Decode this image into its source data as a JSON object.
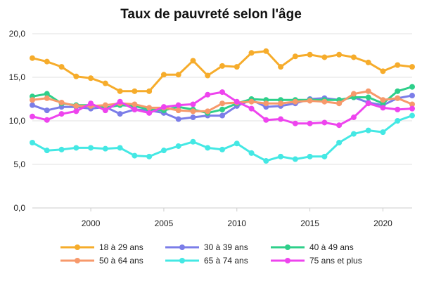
{
  "chart_data": {
    "type": "line",
    "title": "Taux de pauvreté selon l'âge",
    "xlabel": "",
    "ylabel": "",
    "xlim": [
      1996,
      2022
    ],
    "ylim": [
      0,
      20
    ],
    "x_ticks": [
      2000,
      2005,
      2010,
      2015,
      2020
    ],
    "y_ticks": [
      "0,0",
      "5,0",
      "10,0",
      "15,0",
      "20,0"
    ],
    "y_tick_values": [
      0,
      5,
      10,
      15,
      20
    ],
    "grid": "horizontal",
    "legend_position": "bottom",
    "x": [
      1996,
      1997,
      1998,
      1999,
      2000,
      2001,
      2002,
      2003,
      2004,
      2005,
      2006,
      2007,
      2008,
      2009,
      2010,
      2011,
      2012,
      2013,
      2014,
      2015,
      2016,
      2017,
      2018,
      2019,
      2020,
      2021,
      2022
    ],
    "series": [
      {
        "name": "18 à 29 ans",
        "color": "#f6ac2b",
        "values": [
          17.2,
          16.8,
          16.2,
          15.1,
          14.9,
          14.3,
          13.4,
          13.4,
          13.4,
          15.3,
          15.3,
          16.9,
          15.2,
          16.3,
          16.2,
          17.8,
          18.0,
          16.2,
          17.4,
          17.6,
          17.3,
          17.6,
          17.3,
          16.7,
          15.7,
          16.4,
          16.2
        ]
      },
      {
        "name": "30 à 39 ans",
        "color": "#7b7de8",
        "values": [
          11.8,
          11.2,
          11.6,
          11.6,
          11.4,
          11.6,
          10.8,
          11.3,
          11.2,
          10.9,
          10.2,
          10.4,
          10.6,
          10.6,
          11.7,
          12.4,
          11.6,
          11.7,
          12.0,
          12.5,
          12.6,
          12.4,
          12.7,
          12.1,
          11.8,
          12.6,
          12.9
        ]
      },
      {
        "name": "40 à 49 ans",
        "color": "#2ecf8a",
        "values": [
          12.8,
          13.1,
          12.0,
          11.8,
          11.8,
          11.5,
          11.8,
          11.7,
          11.3,
          11.2,
          11.6,
          11.3,
          10.9,
          11.3,
          12.0,
          12.5,
          12.4,
          12.4,
          12.4,
          12.4,
          12.4,
          12.4,
          12.7,
          12.7,
          12.0,
          13.4,
          13.9
        ]
      },
      {
        "name": "50 à 64 ans",
        "color": "#f7996b",
        "values": [
          12.4,
          12.6,
          12.1,
          11.7,
          11.7,
          11.8,
          12.0,
          11.9,
          11.5,
          11.5,
          11.2,
          11.1,
          11.1,
          12.0,
          12.1,
          12.2,
          12.0,
          12.0,
          12.2,
          12.3,
          12.2,
          12.0,
          13.1,
          13.4,
          12.4,
          12.6,
          11.9
        ]
      },
      {
        "name": "65 à 74 ans",
        "color": "#44e8e4",
        "values": [
          7.5,
          6.6,
          6.7,
          6.9,
          6.9,
          6.8,
          6.9,
          6.0,
          5.9,
          6.6,
          7.1,
          7.6,
          6.9,
          6.7,
          7.4,
          6.3,
          5.4,
          5.9,
          5.6,
          5.9,
          5.9,
          7.5,
          8.5,
          8.9,
          8.7,
          10.0,
          10.6
        ]
      },
      {
        "name": "75 ans et plus",
        "color": "#ee44ee",
        "values": [
          10.5,
          10.1,
          10.8,
          11.1,
          12.0,
          11.2,
          12.2,
          11.3,
          10.9,
          11.6,
          11.8,
          11.9,
          13.0,
          13.3,
          12.2,
          11.4,
          10.1,
          10.2,
          9.7,
          9.7,
          9.8,
          9.5,
          10.4,
          12.0,
          11.5,
          11.3,
          11.4
        ]
      }
    ]
  }
}
